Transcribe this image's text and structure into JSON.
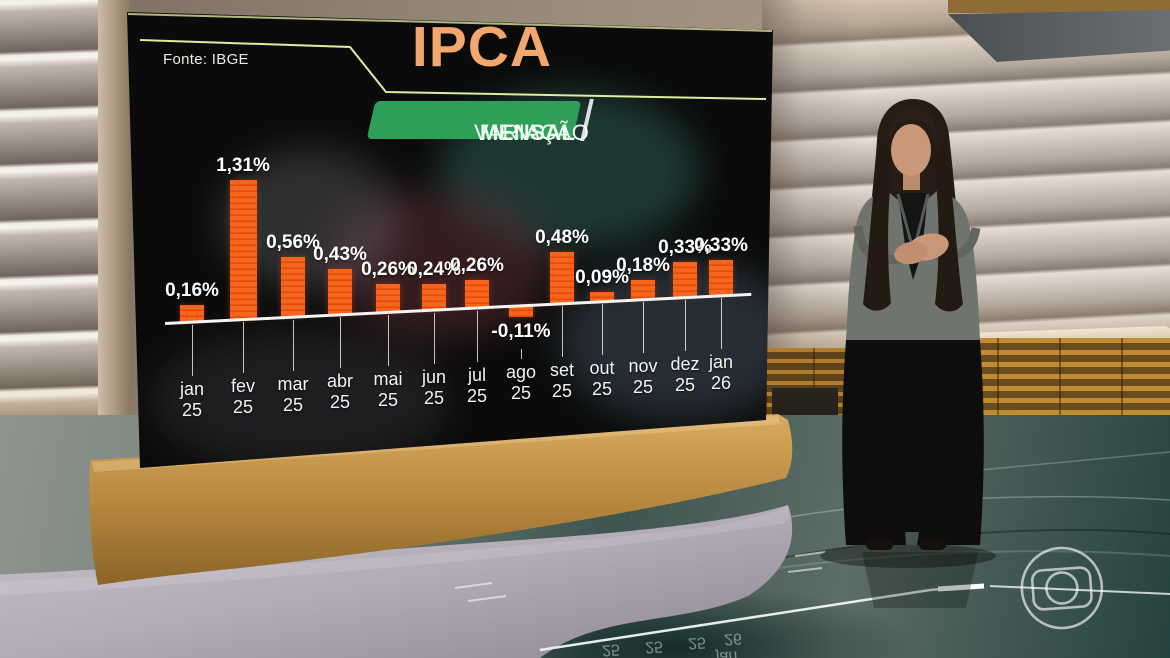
{
  "screen": {
    "source_label": "Fonte: IBGE",
    "title": "IPCA",
    "subtitle_regular": "VARIAÇÃO",
    "subtitle_bold": "MENSAL"
  },
  "chart_data": {
    "type": "bar",
    "title": "IPCA",
    "subtitle": "VARIAÇÃO MENSAL",
    "source": "Fonte: IBGE",
    "unit": "%",
    "categories": [
      "jan 25",
      "fev 25",
      "mar 25",
      "abr 25",
      "mai 25",
      "jun 25",
      "jul 25",
      "ago 25",
      "set 25",
      "out 25",
      "nov 25",
      "dez 25",
      "jan 26"
    ],
    "month_lines": [
      [
        "jan",
        "25"
      ],
      [
        "fev",
        "25"
      ],
      [
        "mar",
        "25"
      ],
      [
        "abr",
        "25"
      ],
      [
        "mai",
        "25"
      ],
      [
        "jun",
        "25"
      ],
      [
        "jul",
        "25"
      ],
      [
        "ago",
        "25"
      ],
      [
        "set",
        "25"
      ],
      [
        "out",
        "25"
      ],
      [
        "nov",
        "25"
      ],
      [
        "dez",
        "25"
      ],
      [
        "jan",
        "26"
      ]
    ],
    "values": [
      0.16,
      1.31,
      0.56,
      0.43,
      0.26,
      0.24,
      0.26,
      -0.11,
      0.48,
      0.09,
      0.18,
      0.33,
      0.33
    ],
    "value_labels": [
      "0,16%",
      "1,31%",
      "0,56%",
      "0,43%",
      "0,26%",
      "0,24%",
      "0,26%",
      "-0,11%",
      "0,48%",
      "0,09%",
      "0,18%",
      "0,33%",
      "0,33%"
    ],
    "ylim": [
      -0.2,
      1.4
    ],
    "grid": false,
    "legend": "none",
    "bar_color": "#f05a15",
    "baseline_color": "#f4f4f0",
    "label_color": "#ffffff"
  },
  "floor_reflection": [
    "25",
    "25",
    "25",
    "26",
    "jan"
  ],
  "colors": {
    "title_orange": "#f1a76d",
    "banner_green": "#2f9e58",
    "divider_line": "#dceca2",
    "screen_bg": "#0a0b0a"
  }
}
